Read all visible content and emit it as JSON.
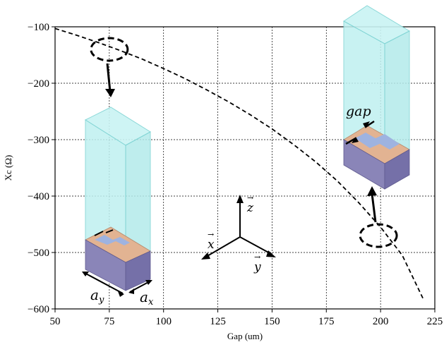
{
  "chart_data": {
    "type": "line",
    "title": "",
    "xlabel": "Gap (um)",
    "ylabel": "Xc (Ω)",
    "xlim": [
      50,
      225
    ],
    "ylim": [
      -600,
      -100
    ],
    "grid": true,
    "x_ticks": [
      50,
      75,
      100,
      125,
      150,
      175,
      200,
      225
    ],
    "y_ticks": [
      -100,
      -200,
      -300,
      -400,
      -500,
      -600
    ],
    "x_tick_labels": [
      "50",
      "75",
      "100",
      "125",
      "150",
      "175",
      "200",
      "225"
    ],
    "y_tick_labels": [
      "−100",
      "−200",
      "−300",
      "−400",
      "−500",
      "−600"
    ],
    "series": [
      {
        "line_style": "dashed",
        "color": "#000000",
        "x": [
          50,
          60,
          70,
          80,
          90,
          100,
          110,
          120,
          130,
          140,
          150,
          160,
          170,
          180,
          190,
          200,
          210,
          220
        ],
        "y": [
          -103,
          -115,
          -128,
          -142,
          -157,
          -174,
          -192,
          -212,
          -233,
          -256,
          -281,
          -309,
          -339,
          -373,
          -412,
          -455,
          -505,
          -585
        ]
      }
    ]
  },
  "annotations": {
    "gap_label": "gap",
    "ay_label": "a",
    "ay_sub": "y",
    "ax_label": "a",
    "ax_sub": "x",
    "axis_x": "x",
    "axis_y": "y",
    "axis_z": "z",
    "arrow_glyph": "→",
    "highlight_points": [
      {
        "x": 75,
        "y": -140
      },
      {
        "x": 199,
        "y": -470
      }
    ]
  },
  "colors": {
    "column_fill": "#bff0f0",
    "column_edge": "#7fd4d4",
    "substrate": "#8a85b8",
    "metal": "#e2b392",
    "patch": "#9eb3e0"
  }
}
